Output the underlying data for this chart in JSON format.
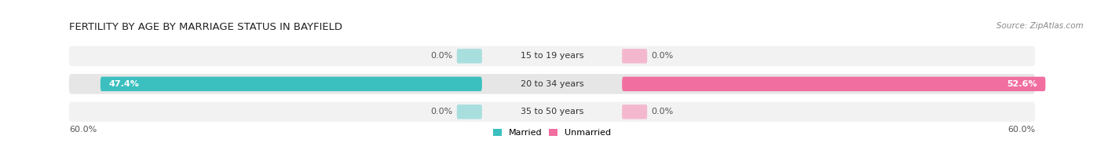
{
  "title": "FERTILITY BY AGE BY MARRIAGE STATUS IN BAYFIELD",
  "source": "Source: ZipAtlas.com",
  "categories": [
    "15 to 19 years",
    "20 to 34 years",
    "35 to 50 years"
  ],
  "married_values": [
    0.0,
    47.4,
    0.0
  ],
  "unmarried_values": [
    0.0,
    52.6,
    0.0
  ],
  "max_val": 60.0,
  "married_color": "#3bbfbf",
  "unmarried_color": "#f06fa0",
  "married_stub_color": "#a8dede",
  "unmarried_stub_color": "#f4b8ce",
  "row_bg_odd": "#f2f2f2",
  "row_bg_even": "#e6e6e6",
  "title_fontsize": 9.5,
  "label_fontsize": 8,
  "source_fontsize": 7.5,
  "tick_fontsize": 8,
  "figsize": [
    14.06,
    1.96
  ],
  "dpi": 100
}
